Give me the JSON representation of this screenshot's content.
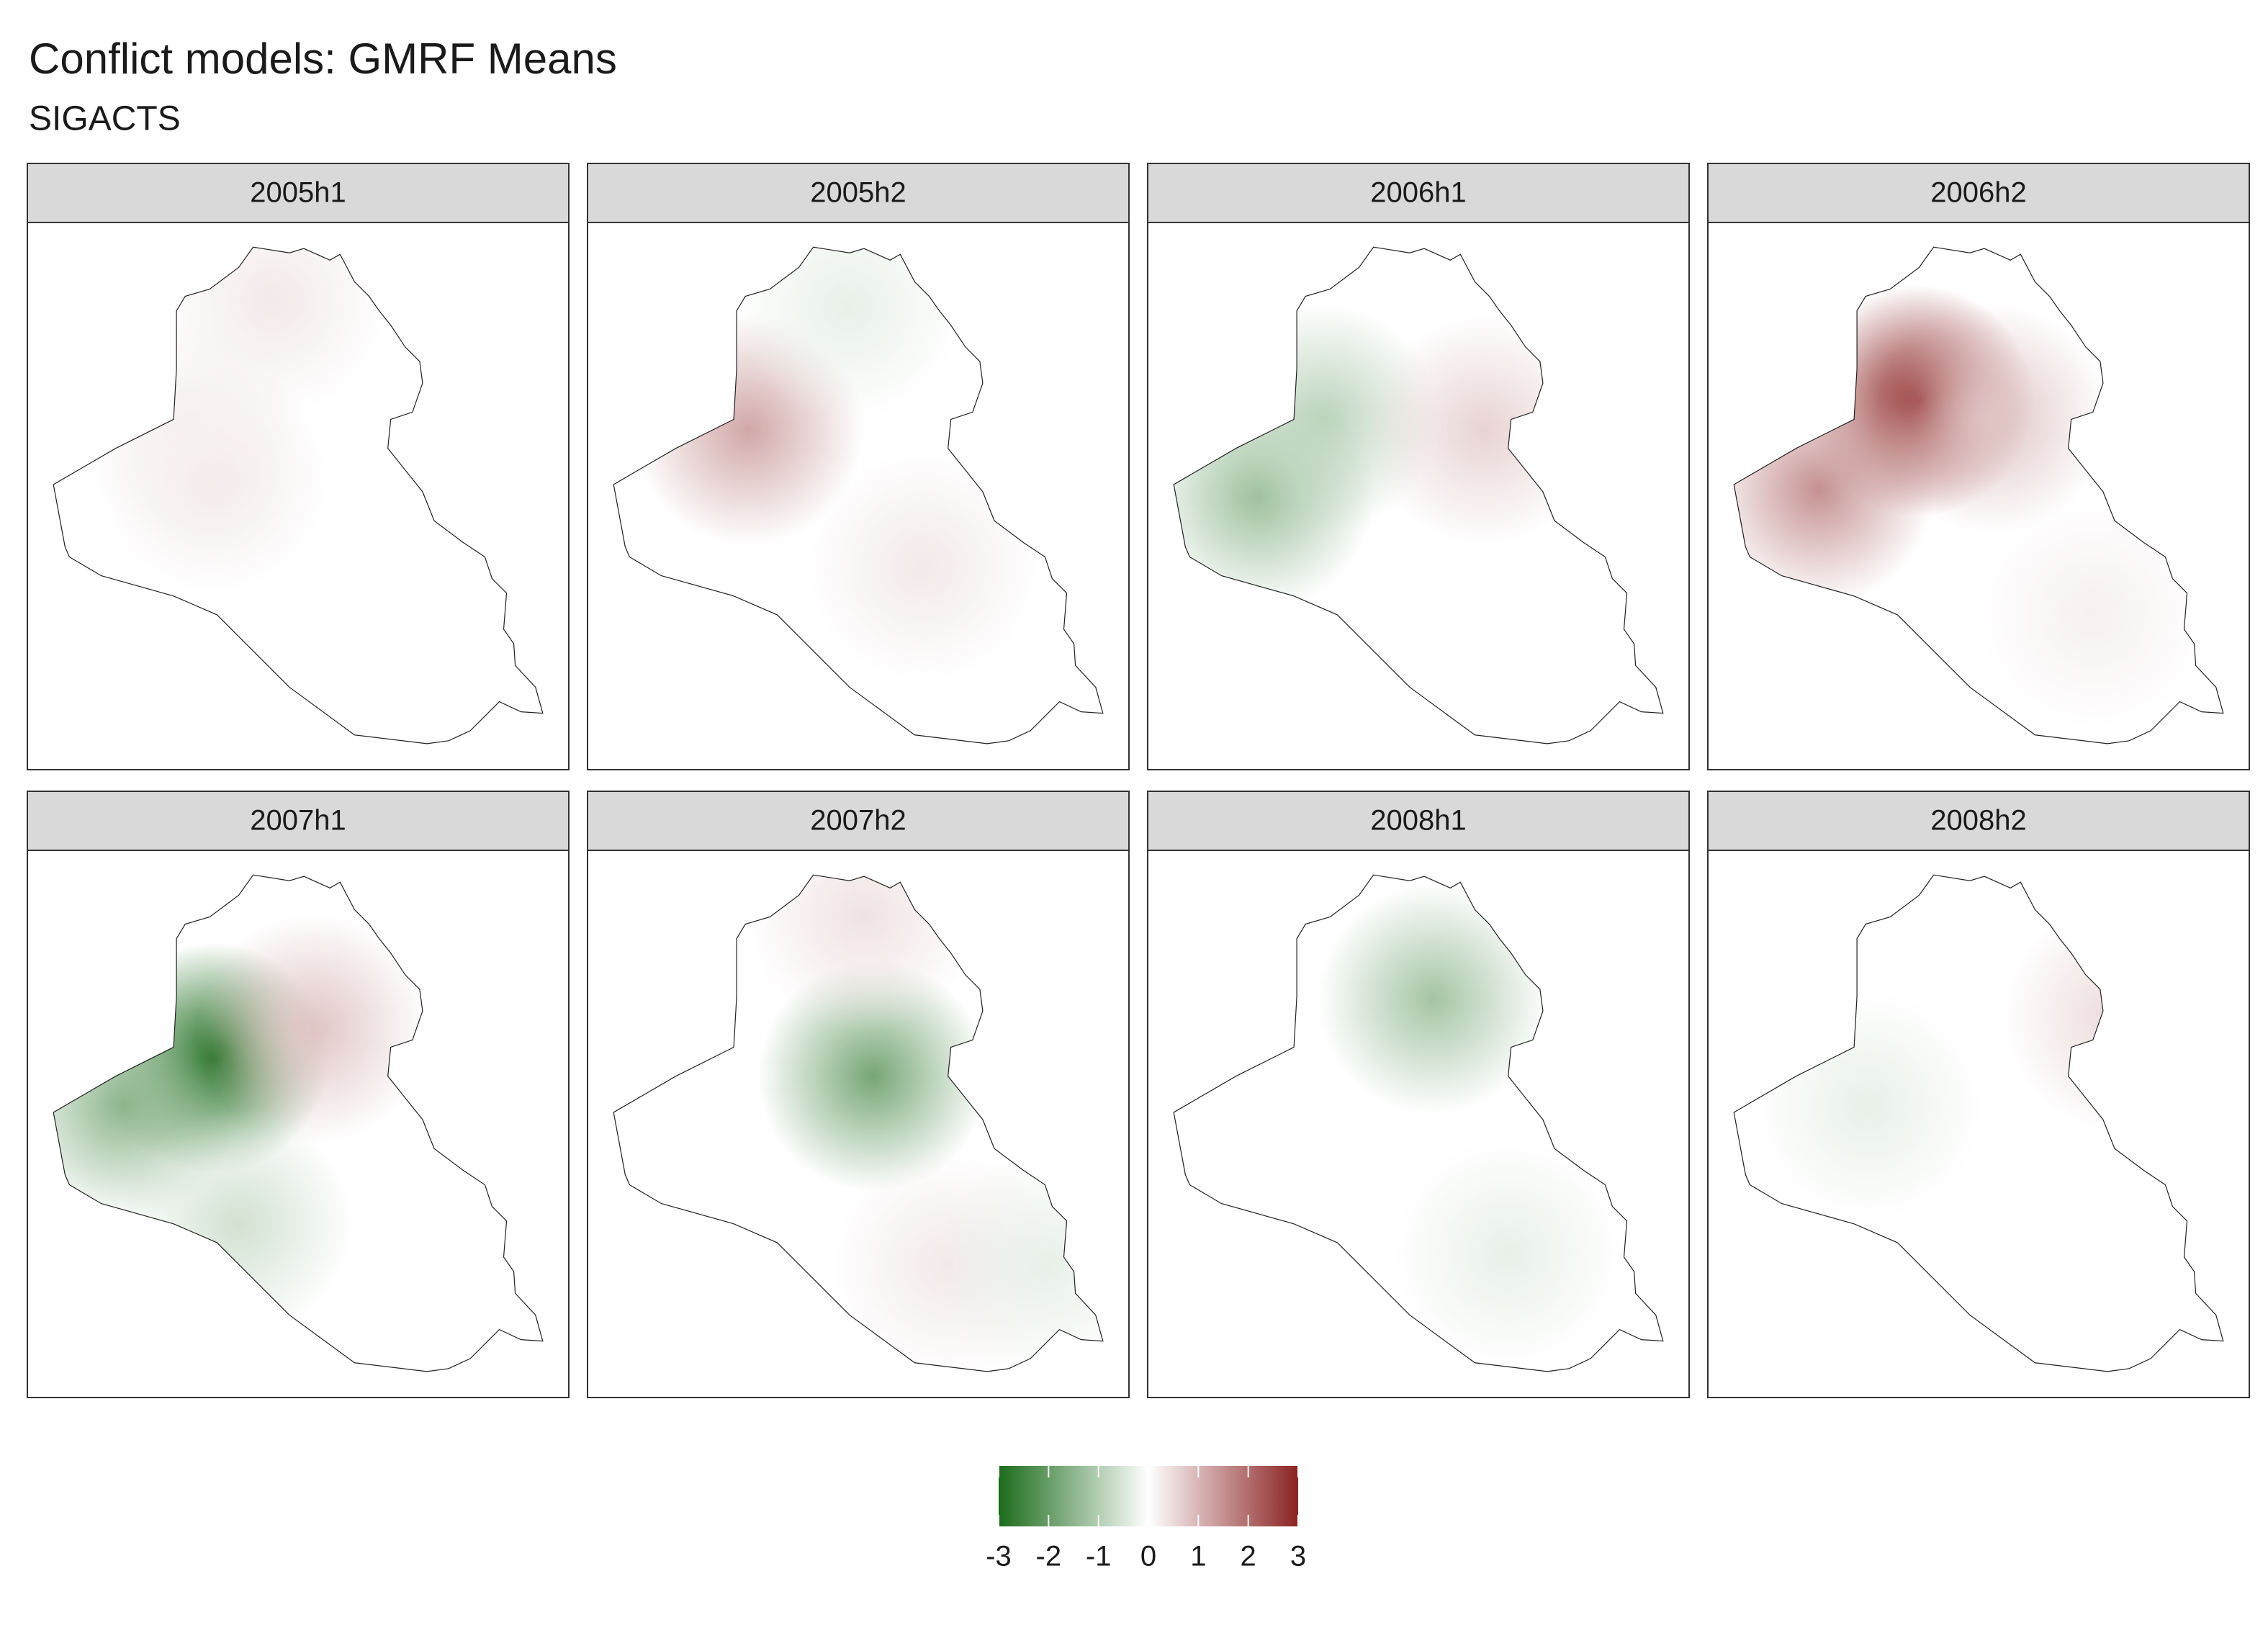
{
  "chart_data": {
    "type": "map",
    "title": "Conflict models: GMRF Means",
    "subtitle": "SIGACTS",
    "xlim": [
      38.8,
      48.6
    ],
    "ylim": [
      29,
      37.4
    ],
    "panels": [
      {
        "title": "2005h1",
        "blobs": [
          {
            "lon": 43.2,
            "lat": 36.5,
            "value": 0.3
          },
          {
            "lon": 42,
            "lat": 33.5,
            "value": 0.3
          },
          {
            "lon": 41.5,
            "lat": 34.4,
            "value": 0.2
          }
        ]
      },
      {
        "title": "2005h2",
        "blobs": [
          {
            "lon": 41.5,
            "lat": 34.3,
            "value": 1.2
          },
          {
            "lon": 43.5,
            "lat": 36.4,
            "value": -0.3
          },
          {
            "lon": 45,
            "lat": 32,
            "value": 0.3
          }
        ]
      },
      {
        "title": "2006h1",
        "blobs": [
          {
            "lon": 40.5,
            "lat": 33.2,
            "value": -1.3
          },
          {
            "lon": 41.8,
            "lat": 34.5,
            "value": -0.9
          },
          {
            "lon": 45,
            "lat": 34.3,
            "value": 0.6
          }
        ]
      },
      {
        "title": "2006h2",
        "blobs": [
          {
            "lon": 42.5,
            "lat": 34.8,
            "value": 3
          },
          {
            "lon": 40.5,
            "lat": 33.3,
            "value": 1.5
          },
          {
            "lon": 44,
            "lat": 34.5,
            "value": 0.8
          },
          {
            "lon": 46,
            "lat": 31.2,
            "value": 0.2
          }
        ]
      },
      {
        "title": "2007h1",
        "blobs": [
          {
            "lon": 42,
            "lat": 34.3,
            "value": -3
          },
          {
            "lon": 40.2,
            "lat": 33.5,
            "value": -1.5
          },
          {
            "lon": 44,
            "lat": 34.8,
            "value": 0.8
          },
          {
            "lon": 42.5,
            "lat": 31.5,
            "value": -0.6
          }
        ]
      },
      {
        "title": "2007h2",
        "blobs": [
          {
            "lon": 44,
            "lat": 34,
            "value": -1.8
          },
          {
            "lon": 43.8,
            "lat": 36.7,
            "value": 0.4
          },
          {
            "lon": 45.5,
            "lat": 30.8,
            "value": 0.3
          },
          {
            "lon": 47.5,
            "lat": 30.8,
            "value": -0.3
          }
        ]
      },
      {
        "title": "2008h1",
        "blobs": [
          {
            "lon": 44,
            "lat": 35.3,
            "value": -1.2
          },
          {
            "lon": 45.5,
            "lat": 31,
            "value": -0.3
          }
        ]
      },
      {
        "title": "2008h2",
        "blobs": [
          {
            "lon": 46.5,
            "lat": 35,
            "value": 0.5
          },
          {
            "lon": 41.5,
            "lat": 33.5,
            "value": -0.3
          }
        ]
      }
    ],
    "colorbar": {
      "lim": [
        -3,
        3
      ],
      "ticks": [
        -3,
        -2,
        -1,
        0,
        1,
        2,
        3
      ],
      "colors": [
        "#1b6b1b",
        "#ffffff",
        "#8b2323"
      ]
    }
  }
}
